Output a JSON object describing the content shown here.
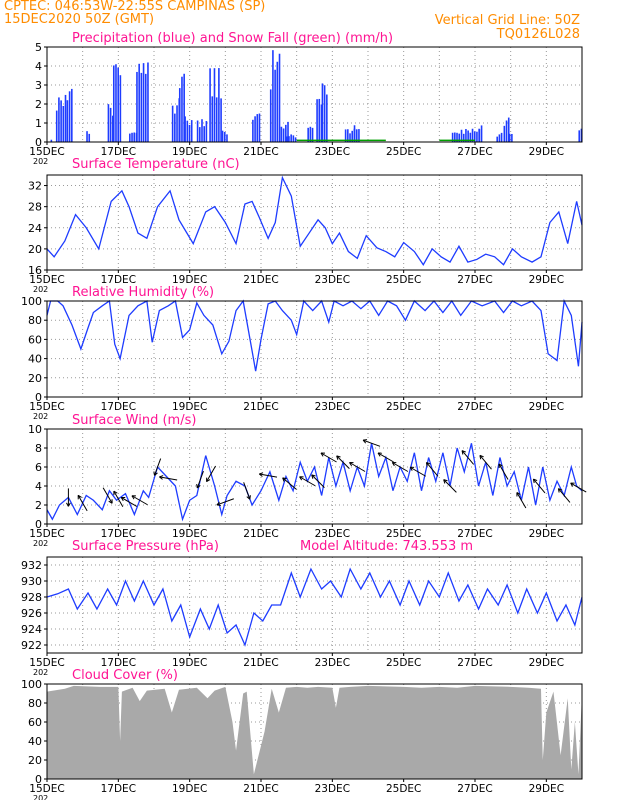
{
  "header": {
    "station": "CPTEC:    046:53W-22:55S    CAMPINAS (SP)",
    "run": "15DEC2020 50Z (GMT)",
    "grid_note": "Vertical Grid Line: 50Z",
    "code": "TQ0126L028",
    "text_color": "#ff8c00"
  },
  "x_ticks": [
    "15DEC",
    "17DEC",
    "19DEC",
    "21DEC",
    "23DEC",
    "25DEC",
    "27DEC",
    "29DEC"
  ],
  "year_label": "202",
  "colors": {
    "title": "#ff1493",
    "precip": "#1e3cff",
    "snow": "#00a000",
    "line": "#1e3cff",
    "cloud": "#a9a9a9",
    "wind_arrow": "#000000",
    "grid": "#9a9a9a",
    "frame": "#000000"
  },
  "chart_data": [
    {
      "type": "bar",
      "title": "Precipitation (blue) and Snow Fall (green) (mm/h)",
      "ylim": [
        0,
        5
      ],
      "yticks": [
        0,
        1,
        2,
        3,
        4,
        5
      ],
      "x_range_days": [
        0,
        15
      ],
      "x_unit": "days after 15DEC",
      "precip_events": [
        [
          0.1,
          0.15,
          0.2
        ],
        [
          0.25,
          0.55,
          2.5
        ],
        [
          0.55,
          0.7,
          2.8
        ],
        [
          1.1,
          1.2,
          0.6
        ],
        [
          1.7,
          1.85,
          2.0
        ],
        [
          1.85,
          2.05,
          4.1
        ],
        [
          2.3,
          2.5,
          0.5
        ],
        [
          2.5,
          2.85,
          4.5
        ],
        [
          3.5,
          3.7,
          2.7
        ],
        [
          3.7,
          3.85,
          3.6
        ],
        [
          3.85,
          4.05,
          1.6
        ],
        [
          4.2,
          4.5,
          1.2
        ],
        [
          4.55,
          4.9,
          3.9
        ],
        [
          4.9,
          5.05,
          0.6
        ],
        [
          5.75,
          5.95,
          1.5
        ],
        [
          6.25,
          6.55,
          4.9
        ],
        [
          6.55,
          6.75,
          1.2
        ],
        [
          6.7,
          6.95,
          0.4
        ],
        [
          7.3,
          7.45,
          0.8
        ],
        [
          7.55,
          7.7,
          2.3
        ],
        [
          7.7,
          7.85,
          3.1
        ],
        [
          8.35,
          8.6,
          0.7
        ],
        [
          8.6,
          8.75,
          1.0
        ],
        [
          11.35,
          11.55,
          0.5
        ],
        [
          11.6,
          12.1,
          0.7
        ],
        [
          12.1,
          12.2,
          0.9
        ],
        [
          12.6,
          12.75,
          0.5
        ],
        [
          12.8,
          12.95,
          1.3
        ],
        [
          12.95,
          13.05,
          0.6
        ],
        [
          14.9,
          15.0,
          0.7
        ]
      ],
      "snow_events": [
        [
          7.0,
          9.5,
          0.1
        ],
        [
          11.0,
          12.0,
          0.1
        ]
      ]
    },
    {
      "type": "line",
      "title": "Surface Temperature (nC)",
      "ylim": [
        16,
        34
      ],
      "yticks": [
        16,
        20,
        24,
        28,
        32
      ],
      "x": [
        0,
        0.2,
        0.5,
        0.8,
        1.1,
        1.45,
        1.8,
        2.1,
        2.3,
        2.55,
        2.8,
        3.1,
        3.45,
        3.7,
        4.1,
        4.45,
        4.7,
        5.0,
        5.3,
        5.55,
        5.75,
        5.95,
        6.2,
        6.4,
        6.6,
        6.85,
        7.1,
        7.35,
        7.6,
        7.8,
        8.0,
        8.2,
        8.45,
        8.7,
        8.95,
        9.25,
        9.5,
        9.75,
        10.0,
        10.3,
        10.55,
        10.8,
        11.05,
        11.3,
        11.55,
        11.8,
        12.05,
        12.3,
        12.55,
        12.8,
        13.05,
        13.3,
        13.6,
        13.85,
        14.1,
        14.35,
        14.6,
        14.85,
        15.0
      ],
      "series": [
        {
          "values": [
            20,
            18.5,
            21.5,
            26.5,
            24,
            20,
            29,
            31,
            28,
            23,
            22,
            28,
            31,
            25.5,
            21,
            27,
            28,
            25,
            21,
            28.5,
            29,
            26,
            22,
            25,
            33.5,
            30,
            20.5,
            23,
            25.5,
            24,
            21,
            23,
            19.5,
            18.2,
            22.5,
            20.2,
            19.5,
            18.5,
            21.2,
            19.5,
            17,
            20,
            18.5,
            17.5,
            20.5,
            17.5,
            18,
            19,
            18.5,
            17,
            20,
            18.5,
            17.5,
            18.5,
            25,
            27,
            21,
            29,
            24.5
          ]
        }
      ]
    },
    {
      "type": "line",
      "title": "Relative Humidity (%)",
      "ylim": [
        0,
        100
      ],
      "yticks": [
        0,
        20,
        40,
        60,
        80,
        100
      ],
      "x": [
        0,
        0.1,
        0.3,
        0.45,
        0.7,
        0.95,
        1.15,
        1.3,
        1.55,
        1.75,
        1.9,
        2.05,
        2.3,
        2.55,
        2.8,
        2.95,
        3.15,
        3.4,
        3.6,
        3.8,
        4.0,
        4.2,
        4.4,
        4.65,
        4.9,
        5.1,
        5.3,
        5.5,
        5.75,
        5.85,
        6.0,
        6.2,
        6.4,
        6.6,
        6.85,
        7.0,
        7.2,
        7.45,
        7.7,
        7.9,
        8.05,
        8.3,
        8.55,
        8.8,
        9.05,
        9.3,
        9.55,
        9.8,
        10.05,
        10.3,
        10.6,
        10.85,
        11.1,
        11.35,
        11.6,
        11.9,
        12.2,
        12.55,
        12.8,
        13.05,
        13.3,
        13.6,
        13.85,
        14.05,
        14.3,
        14.5,
        14.7,
        14.9,
        15.0
      ],
      "series": [
        {
          "values": [
            85,
            100,
            100,
            95,
            75,
            50,
            72,
            88,
            95,
            100,
            55,
            40,
            85,
            95,
            100,
            57,
            90,
            95,
            100,
            62,
            70,
            98,
            85,
            75,
            45,
            58,
            90,
            100,
            48,
            27,
            60,
            97,
            100,
            90,
            80,
            65,
            100,
            90,
            100,
            78,
            100,
            95,
            100,
            92,
            100,
            85,
            100,
            95,
            80,
            100,
            90,
            100,
            88,
            100,
            85,
            100,
            95,
            100,
            88,
            100,
            95,
            100,
            90,
            45,
            38,
            100,
            85,
            32,
            78
          ]
        }
      ]
    },
    {
      "type": "line",
      "title": "Surface Wind (m/s)",
      "ylim": [
        0,
        10
      ],
      "yticks": [
        0,
        2,
        4,
        6,
        8,
        10
      ],
      "x": [
        0,
        0.15,
        0.35,
        0.6,
        0.85,
        1.1,
        1.3,
        1.55,
        1.75,
        1.95,
        2.2,
        2.45,
        2.7,
        2.85,
        3.1,
        3.35,
        3.6,
        3.8,
        4.0,
        4.2,
        4.45,
        4.7,
        4.9,
        5.05,
        5.3,
        5.55,
        5.75,
        6.0,
        6.25,
        6.5,
        6.7,
        6.9,
        7.1,
        7.3,
        7.5,
        7.7,
        7.9,
        8.1,
        8.3,
        8.5,
        8.7,
        8.9,
        9.1,
        9.3,
        9.5,
        9.7,
        9.9,
        10.1,
        10.3,
        10.5,
        10.7,
        10.9,
        11.1,
        11.3,
        11.5,
        11.7,
        11.9,
        12.1,
        12.3,
        12.5,
        12.7,
        12.9,
        13.1,
        13.3,
        13.5,
        13.7,
        13.9,
        14.1,
        14.3,
        14.5,
        14.7,
        14.85,
        15.0
      ],
      "series": [
        {
          "values": [
            1.5,
            0.5,
            2,
            2.8,
            1,
            3,
            2.5,
            1.5,
            3.5,
            2.5,
            3.2,
            1,
            3.5,
            2.8,
            6,
            5,
            4,
            0.5,
            2.5,
            3,
            7.2,
            4,
            1,
            3,
            4.5,
            4,
            2,
            3.5,
            5.5,
            2.5,
            5,
            3.5,
            6.5,
            4.5,
            6,
            3,
            7,
            4,
            6.5,
            3.5,
            6,
            4,
            8.5,
            5,
            7,
            3.5,
            6,
            4.5,
            7.5,
            3.5,
            7,
            4.5,
            7.5,
            4,
            8,
            5.5,
            8.5,
            4,
            6.5,
            3,
            7,
            4,
            5.5,
            2.5,
            6,
            2,
            6,
            2.5,
            4.5,
            3,
            6,
            4,
            3.5
          ]
        }
      ],
      "wind_arrows": [
        {
          "day": 0.6,
          "direction_deg": 180
        },
        {
          "day": 1.0,
          "direction_deg": 330
        },
        {
          "day": 1.7,
          "direction_deg": 150
        },
        {
          "day": 2.0,
          "direction_deg": 330
        },
        {
          "day": 2.3,
          "direction_deg": 300
        },
        {
          "day": 2.6,
          "direction_deg": 300
        },
        {
          "day": 3.1,
          "direction_deg": 200
        },
        {
          "day": 3.4,
          "direction_deg": 280
        },
        {
          "day": 4.3,
          "direction_deg": 200
        },
        {
          "day": 4.6,
          "direction_deg": 210
        },
        {
          "day": 5.0,
          "direction_deg": 250
        },
        {
          "day": 5.6,
          "direction_deg": 160
        },
        {
          "day": 6.2,
          "direction_deg": 280
        },
        {
          "day": 6.8,
          "direction_deg": 310
        },
        {
          "day": 7.3,
          "direction_deg": 300
        },
        {
          "day": 7.6,
          "direction_deg": 315
        },
        {
          "day": 7.9,
          "direction_deg": 300
        },
        {
          "day": 8.3,
          "direction_deg": 315
        },
        {
          "day": 8.7,
          "direction_deg": 300
        },
        {
          "day": 9.1,
          "direction_deg": 290
        },
        {
          "day": 9.5,
          "direction_deg": 300
        },
        {
          "day": 9.9,
          "direction_deg": 300
        },
        {
          "day": 10.4,
          "direction_deg": 300
        },
        {
          "day": 10.8,
          "direction_deg": 320
        },
        {
          "day": 11.3,
          "direction_deg": 315
        },
        {
          "day": 11.8,
          "direction_deg": 320
        },
        {
          "day": 12.3,
          "direction_deg": 320
        },
        {
          "day": 12.8,
          "direction_deg": 330
        },
        {
          "day": 13.3,
          "direction_deg": 330
        },
        {
          "day": 13.8,
          "direction_deg": 320
        },
        {
          "day": 14.5,
          "direction_deg": 320
        },
        {
          "day": 14.9,
          "direction_deg": 300
        }
      ]
    },
    {
      "type": "line",
      "title": "Surface Pressure (hPa)",
      "annotation": "Model Altitude: 743.553  m",
      "ylim": [
        921,
        933
      ],
      "yticks": [
        922,
        924,
        926,
        928,
        930,
        932
      ],
      "x": [
        0,
        0.3,
        0.6,
        0.85,
        1.15,
        1.4,
        1.7,
        1.95,
        2.2,
        2.45,
        2.7,
        3.0,
        3.25,
        3.5,
        3.75,
        4.0,
        4.3,
        4.55,
        4.8,
        5.05,
        5.3,
        5.55,
        5.8,
        6.05,
        6.3,
        6.55,
        6.85,
        7.1,
        7.4,
        7.7,
        7.95,
        8.25,
        8.5,
        8.8,
        9.05,
        9.35,
        9.6,
        9.9,
        10.15,
        10.45,
        10.7,
        11.0,
        11.25,
        11.55,
        11.8,
        12.1,
        12.35,
        12.65,
        12.9,
        13.2,
        13.45,
        13.75,
        14.0,
        14.3,
        14.55,
        14.8,
        15.0
      ],
      "series": [
        {
          "values": [
            928,
            928.4,
            929,
            926.5,
            928.5,
            926.5,
            929,
            927,
            930,
            927.5,
            930,
            927,
            929,
            925,
            927,
            923,
            926.5,
            924,
            927,
            923.5,
            924.5,
            922,
            926,
            925,
            927,
            927,
            931,
            928,
            931.5,
            929,
            930,
            928,
            931.5,
            929,
            931,
            928,
            930,
            927,
            930,
            927,
            930,
            928,
            931,
            927.5,
            929.5,
            926.5,
            929,
            927,
            929.5,
            926,
            929,
            926,
            928.5,
            925,
            927,
            924.5,
            928
          ]
        }
      ]
    },
    {
      "type": "area",
      "title": "Cloud Cover (%)",
      "ylim": [
        0,
        100
      ],
      "yticks": [
        0,
        20,
        40,
        60,
        80,
        100
      ],
      "x": [
        0,
        0.5,
        0.75,
        1.5,
        2.0,
        2.05,
        2.1,
        2.4,
        2.6,
        2.8,
        3.3,
        3.5,
        3.7,
        4.2,
        4.5,
        4.7,
        5.0,
        5.2,
        5.3,
        5.5,
        5.6,
        5.8,
        6.0,
        6.1,
        6.3,
        6.5,
        6.7,
        7.0,
        7.3,
        7.6,
        8.0,
        8.1,
        8.2,
        8.5,
        9.0,
        10.0,
        10.5,
        11.0,
        11.5,
        12.0,
        13.0,
        13.5,
        13.85,
        13.9,
        14.0,
        14.2,
        14.4,
        14.6,
        14.7,
        14.8,
        14.9,
        15.0
      ],
      "series": [
        {
          "values": [
            92,
            95,
            98,
            97,
            97,
            40,
            92,
            96,
            82,
            93,
            95,
            70,
            94,
            96,
            85,
            93,
            97,
            60,
            30,
            90,
            92,
            5,
            35,
            50,
            95,
            70,
            96,
            97,
            96,
            97,
            96,
            75,
            96,
            97,
            98,
            97,
            96,
            97,
            96,
            98,
            97,
            96,
            95,
            20,
            70,
            92,
            25,
            85,
            10,
            60,
            5,
            90
          ]
        }
      ]
    }
  ]
}
